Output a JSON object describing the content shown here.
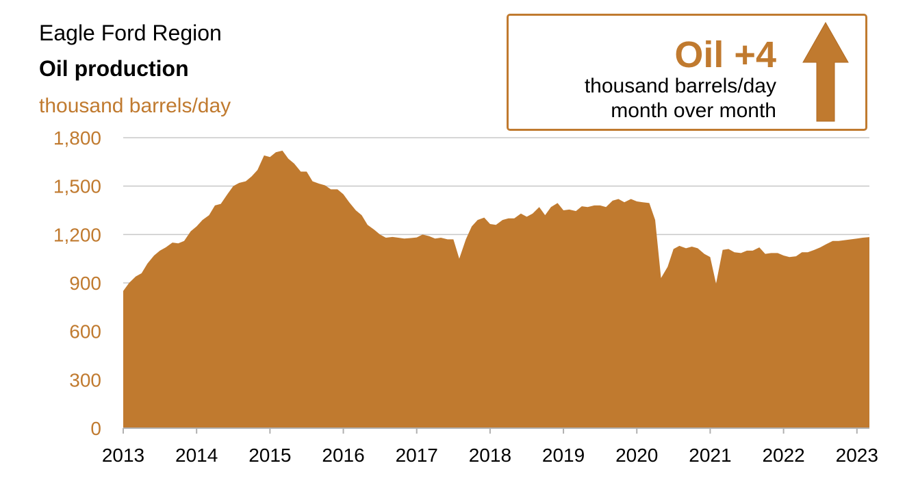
{
  "header": {
    "region": "Eagle Ford Region",
    "title": "Oil production",
    "unit": "thousand barrels/day"
  },
  "callout": {
    "headline": "Oil +4",
    "line1": "thousand barrels/day",
    "line2": "month over month",
    "direction": "up",
    "color": "#C07A2F"
  },
  "chart_data": {
    "type": "area",
    "title": "Oil production",
    "ylabel": "thousand barrels/day",
    "ylim": [
      0,
      1800
    ],
    "xlim": [
      2013.0,
      2023.17
    ],
    "yticks": [
      0,
      300,
      600,
      900,
      1200,
      1500,
      1800
    ],
    "yticklabels": [
      "0",
      "300",
      "600",
      "900",
      "1,200",
      "1,500",
      "1,800"
    ],
    "xticks": [
      2013,
      2014,
      2015,
      2016,
      2017,
      2018,
      2019,
      2020,
      2021,
      2022,
      2023
    ],
    "xticklabels": [
      "2013",
      "2014",
      "2015",
      "2016",
      "2017",
      "2018",
      "2019",
      "2020",
      "2021",
      "2022",
      "2023"
    ],
    "grid": true,
    "fill_color": "#C07A2F",
    "series": [
      {
        "x": [
          2013.0,
          2013.08,
          2013.17,
          2013.25,
          2013.33,
          2013.42,
          2013.5,
          2013.58,
          2013.67,
          2013.75,
          2013.83,
          2013.92,
          2014.0,
          2014.08,
          2014.17,
          2014.25,
          2014.33,
          2014.42,
          2014.5,
          2014.58,
          2014.67,
          2014.75,
          2014.83,
          2014.92,
          2015.0,
          2015.08,
          2015.17,
          2015.25,
          2015.33,
          2015.42,
          2015.5,
          2015.58,
          2015.67,
          2015.75,
          2015.83,
          2015.92,
          2016.0,
          2016.08,
          2016.17,
          2016.25,
          2016.33,
          2016.42,
          2016.5,
          2016.58,
          2016.67,
          2016.75,
          2016.83,
          2016.92,
          2017.0,
          2017.08,
          2017.17,
          2017.25,
          2017.33,
          2017.42,
          2017.5,
          2017.58,
          2017.67,
          2017.75,
          2017.83,
          2017.92,
          2018.0,
          2018.08,
          2018.17,
          2018.25,
          2018.33,
          2018.42,
          2018.5,
          2018.58,
          2018.67,
          2018.75,
          2018.83,
          2018.92,
          2019.0,
          2019.08,
          2019.17,
          2019.25,
          2019.33,
          2019.42,
          2019.5,
          2019.58,
          2019.67,
          2019.75,
          2019.83,
          2019.92,
          2020.0,
          2020.08,
          2020.17,
          2020.25,
          2020.33,
          2020.42,
          2020.5,
          2020.58,
          2020.67,
          2020.75,
          2020.83,
          2020.92,
          2021.0,
          2021.08,
          2021.17,
          2021.25,
          2021.33,
          2021.42,
          2021.5,
          2021.58,
          2021.67,
          2021.75,
          2021.83,
          2021.92,
          2022.0,
          2022.08,
          2022.17,
          2022.25,
          2022.33,
          2022.42,
          2022.5,
          2022.58,
          2022.67,
          2022.75,
          2022.83,
          2022.92,
          2023.0,
          2023.08,
          2023.17
        ],
        "y": [
          850,
          900,
          940,
          960,
          1020,
          1070,
          1100,
          1120,
          1150,
          1145,
          1160,
          1220,
          1250,
          1290,
          1320,
          1380,
          1390,
          1450,
          1500,
          1520,
          1530,
          1560,
          1600,
          1690,
          1680,
          1710,
          1720,
          1670,
          1640,
          1590,
          1590,
          1530,
          1515,
          1505,
          1480,
          1480,
          1450,
          1400,
          1350,
          1320,
          1260,
          1230,
          1200,
          1180,
          1185,
          1180,
          1175,
          1178,
          1182,
          1200,
          1190,
          1175,
          1180,
          1170,
          1170,
          1050,
          1170,
          1250,
          1290,
          1305,
          1265,
          1260,
          1290,
          1300,
          1300,
          1330,
          1310,
          1330,
          1370,
          1320,
          1370,
          1395,
          1350,
          1355,
          1345,
          1375,
          1370,
          1380,
          1380,
          1370,
          1410,
          1420,
          1400,
          1420,
          1405,
          1400,
          1395,
          1290,
          930,
          1000,
          1110,
          1130,
          1115,
          1125,
          1115,
          1080,
          1060,
          895,
          1105,
          1110,
          1090,
          1085,
          1100,
          1100,
          1120,
          1080,
          1085,
          1085,
          1070,
          1060,
          1065,
          1090,
          1090,
          1105,
          1120,
          1140,
          1160,
          1160,
          1165,
          1170,
          1175,
          1180,
          1184
        ]
      }
    ]
  }
}
